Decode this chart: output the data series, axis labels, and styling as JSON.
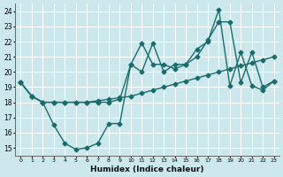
{
  "xlabel": "Humidex (Indice chaleur)",
  "bg_color": "#cce8ec",
  "grid_color": "#ffffff",
  "line_color": "#1a6b6b",
  "xlim": [
    -0.5,
    23.5
  ],
  "ylim": [
    14.5,
    24.5
  ],
  "xticks": [
    0,
    1,
    2,
    3,
    4,
    5,
    6,
    7,
    8,
    9,
    10,
    11,
    12,
    13,
    14,
    15,
    16,
    17,
    18,
    19,
    20,
    21,
    22,
    23
  ],
  "yticks": [
    15,
    16,
    17,
    18,
    19,
    20,
    21,
    22,
    23,
    24
  ],
  "line1_x": [
    0,
    1,
    2,
    3,
    4,
    5,
    6,
    7,
    8,
    9,
    10,
    11,
    12,
    13,
    14,
    15,
    16,
    17,
    18,
    19,
    20,
    21,
    22,
    23
  ],
  "line1_y": [
    19.3,
    18.4,
    18.0,
    18.0,
    18.0,
    18.0,
    18.0,
    18.1,
    18.2,
    18.3,
    18.4,
    18.6,
    18.8,
    19.0,
    19.2,
    19.4,
    19.6,
    19.8,
    20.0,
    20.2,
    20.4,
    20.6,
    20.8,
    21.0
  ],
  "line2_x": [
    0,
    1,
    2,
    3,
    4,
    5,
    6,
    7,
    8,
    9,
    10,
    11,
    12,
    13,
    14,
    15,
    16,
    17,
    18,
    19,
    20,
    21,
    22,
    23
  ],
  "line2_y": [
    19.3,
    18.4,
    18.0,
    16.5,
    15.3,
    14.9,
    15.0,
    15.3,
    16.6,
    16.6,
    20.5,
    21.9,
    20.5,
    20.5,
    20.2,
    20.5,
    21.5,
    22.0,
    24.1,
    19.1,
    21.3,
    19.1,
    18.8,
    19.4
  ],
  "line3_x": [
    0,
    1,
    2,
    3,
    4,
    5,
    6,
    7,
    8,
    9,
    10,
    11,
    12,
    13,
    14,
    15,
    16,
    17,
    18,
    19,
    20,
    21,
    22,
    23
  ],
  "line3_y": [
    19.3,
    18.4,
    18.0,
    18.0,
    18.0,
    18.0,
    18.0,
    18.0,
    18.0,
    18.2,
    20.5,
    20.0,
    21.9,
    20.0,
    20.5,
    20.5,
    21.0,
    22.1,
    23.3,
    23.3,
    19.3,
    21.3,
    19.0,
    19.4
  ],
  "marker": "D",
  "markersize": 2.5,
  "linewidth": 1.0
}
